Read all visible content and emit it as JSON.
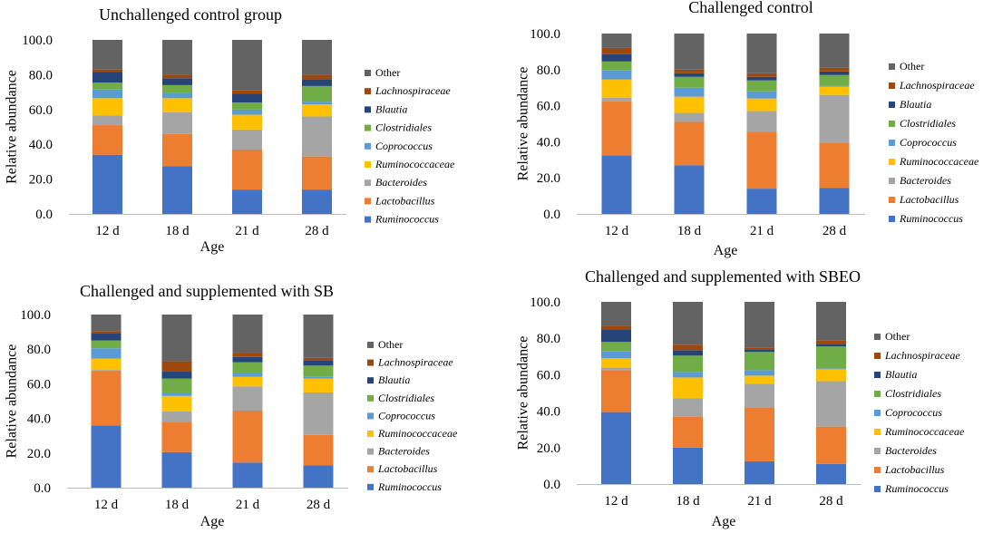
{
  "chart_data": [
    {
      "type": "bar",
      "stacked": true,
      "title": "Unchallenged control group",
      "xlabel": "Age",
      "ylabel": "Relative abundance",
      "ylim": [
        0,
        100
      ],
      "yticks": [
        "0.0",
        "20.0",
        "40.0",
        "60.0",
        "80.0",
        "100.0"
      ],
      "categories": [
        "12 d",
        "18 d",
        "21 d",
        "28 d"
      ],
      "series": [
        {
          "name": "Ruminococcus",
          "italic": true,
          "color": "#4472C4",
          "values": [
            34,
            27.5,
            14,
            14
          ]
        },
        {
          "name": "Lactobacillus",
          "italic": true,
          "color": "#ED7D31",
          "values": [
            17,
            18.5,
            23,
            19
          ]
        },
        {
          "name": "Bacteroides",
          "italic": true,
          "color": "#A5A5A5",
          "values": [
            5.5,
            12.5,
            11.5,
            23
          ]
        },
        {
          "name": "Ruminococcaceae",
          "italic": true,
          "color": "#FFC000",
          "values": [
            10,
            8,
            8.5,
            7
          ]
        },
        {
          "name": "Coprococcus",
          "italic": true,
          "color": "#5B9BD5",
          "values": [
            5,
            3,
            3,
            1.5
          ]
        },
        {
          "name": "Clostridiales",
          "italic": true,
          "color": "#70AD47",
          "values": [
            4,
            4.5,
            4,
            9
          ]
        },
        {
          "name": "Blautia",
          "italic": true,
          "color": "#264478",
          "values": [
            6,
            4,
            5,
            4
          ]
        },
        {
          "name": "Lachnospiraceae",
          "italic": true,
          "color": "#9E480E",
          "values": [
            1.5,
            2,
            2,
            2.5
          ]
        },
        {
          "name": "Other",
          "italic": false,
          "color": "#636363",
          "values": [
            17,
            20,
            29,
            20
          ]
        }
      ]
    },
    {
      "type": "bar",
      "stacked": true,
      "title": "Challenged control",
      "xlabel": "Age",
      "ylabel": "Relative abundance",
      "ylim": [
        0,
        100
      ],
      "yticks": [
        "0.0",
        "20.0",
        "40.0",
        "60.0",
        "80.0",
        "100.0"
      ],
      "categories": [
        "12 d",
        "18 d",
        "21 d",
        "28 d"
      ],
      "series": [
        {
          "name": "Ruminococcus",
          "italic": true,
          "color": "#4472C4",
          "values": [
            32.5,
            27,
            14,
            14.5
          ]
        },
        {
          "name": "Lactobacillus",
          "italic": true,
          "color": "#ED7D31",
          "values": [
            30,
            24,
            31.5,
            25
          ]
        },
        {
          "name": "Bacteroides",
          "italic": true,
          "color": "#A5A5A5",
          "values": [
            2,
            5,
            11.5,
            26.5
          ]
        },
        {
          "name": "Ruminococcaceae",
          "italic": true,
          "color": "#FFC000",
          "values": [
            10,
            9,
            7,
            4.5
          ]
        },
        {
          "name": "Coprococcus",
          "italic": true,
          "color": "#5B9BD5",
          "values": [
            5,
            5,
            4,
            0.5
          ]
        },
        {
          "name": "Clostridiales",
          "italic": true,
          "color": "#70AD47",
          "values": [
            5,
            6,
            6,
            6
          ]
        },
        {
          "name": "Blautia",
          "italic": true,
          "color": "#264478",
          "values": [
            4,
            2,
            2,
            2
          ]
        },
        {
          "name": "Lachnospiraceae",
          "italic": true,
          "color": "#9E480E",
          "values": [
            3.5,
            2,
            2,
            2
          ]
        },
        {
          "name": "Other",
          "italic": false,
          "color": "#636363",
          "values": [
            8,
            20,
            22,
            19
          ]
        }
      ]
    },
    {
      "type": "bar",
      "stacked": true,
      "title": "Challenged and supplemented with SB",
      "xlabel": "Age",
      "ylabel": "Relative abundance",
      "ylim": [
        0,
        100
      ],
      "yticks": [
        "0.0",
        "20.0",
        "40.0",
        "60.0",
        "80.0",
        "100.0"
      ],
      "categories": [
        "12 d",
        "18 d",
        "21 d",
        "28 d"
      ],
      "series": [
        {
          "name": "Ruminococcus",
          "italic": true,
          "color": "#4472C4",
          "values": [
            36,
            20.5,
            14.5,
            13
          ]
        },
        {
          "name": "Lactobacillus",
          "italic": true,
          "color": "#ED7D31",
          "values": [
            31.5,
            17.5,
            30,
            17.5
          ]
        },
        {
          "name": "Bacteroides",
          "italic": true,
          "color": "#A5A5A5",
          "values": [
            0.5,
            6,
            14,
            24.5
          ]
        },
        {
          "name": "Ruminococcaceae",
          "italic": true,
          "color": "#FFC000",
          "values": [
            6.5,
            9,
            5.5,
            8
          ]
        },
        {
          "name": "Coprococcus",
          "italic": true,
          "color": "#5B9BD5",
          "values": [
            6,
            2,
            2.5,
            1
          ]
        },
        {
          "name": "Clostridiales",
          "italic": true,
          "color": "#70AD47",
          "values": [
            4.5,
            8,
            6,
            6.5
          ]
        },
        {
          "name": "Blautia",
          "italic": true,
          "color": "#264478",
          "values": [
            4,
            4,
            3,
            3
          ]
        },
        {
          "name": "Lachnospiraceae",
          "italic": true,
          "color": "#9E480E",
          "values": [
            1.5,
            6,
            2,
            1.5
          ]
        },
        {
          "name": "Other",
          "italic": false,
          "color": "#636363",
          "values": [
            9.5,
            27,
            22.5,
            25
          ]
        }
      ]
    },
    {
      "type": "bar",
      "stacked": true,
      "title": "Challenged and supplemented with SBEO",
      "xlabel": "Age",
      "ylabel": "Relative abundance",
      "ylim": [
        0,
        100
      ],
      "yticks": [
        "0.0",
        "20.0",
        "40.0",
        "60.0",
        "80.0",
        "100.0"
      ],
      "categories": [
        "12 d",
        "18 d",
        "21 d",
        "28 d"
      ],
      "series": [
        {
          "name": "Ruminococcus",
          "italic": true,
          "color": "#4472C4",
          "values": [
            39.5,
            20,
            12.5,
            11
          ]
        },
        {
          "name": "Lactobacillus",
          "italic": true,
          "color": "#ED7D31",
          "values": [
            23,
            17,
            29.5,
            20.5
          ]
        },
        {
          "name": "Bacteroides",
          "italic": true,
          "color": "#A5A5A5",
          "values": [
            1.5,
            10,
            13,
            25
          ]
        },
        {
          "name": "Ruminococcaceae",
          "italic": true,
          "color": "#FFC000",
          "values": [
            5,
            11.5,
            4.5,
            6.5
          ]
        },
        {
          "name": "Coprococcus",
          "italic": true,
          "color": "#5B9BD5",
          "values": [
            4,
            3,
            3,
            0.5
          ]
        },
        {
          "name": "Clostridiales",
          "italic": true,
          "color": "#70AD47",
          "values": [
            5,
            9,
            10,
            12
          ]
        },
        {
          "name": "Blautia",
          "italic": true,
          "color": "#264478",
          "values": [
            7,
            3,
            1.5,
            1.5
          ]
        },
        {
          "name": "Lachnospiraceae",
          "italic": true,
          "color": "#9E480E",
          "values": [
            2,
            3,
            1,
            2
          ]
        },
        {
          "name": "Other",
          "italic": false,
          "color": "#636363",
          "values": [
            13,
            23.5,
            25,
            21
          ]
        }
      ]
    }
  ]
}
